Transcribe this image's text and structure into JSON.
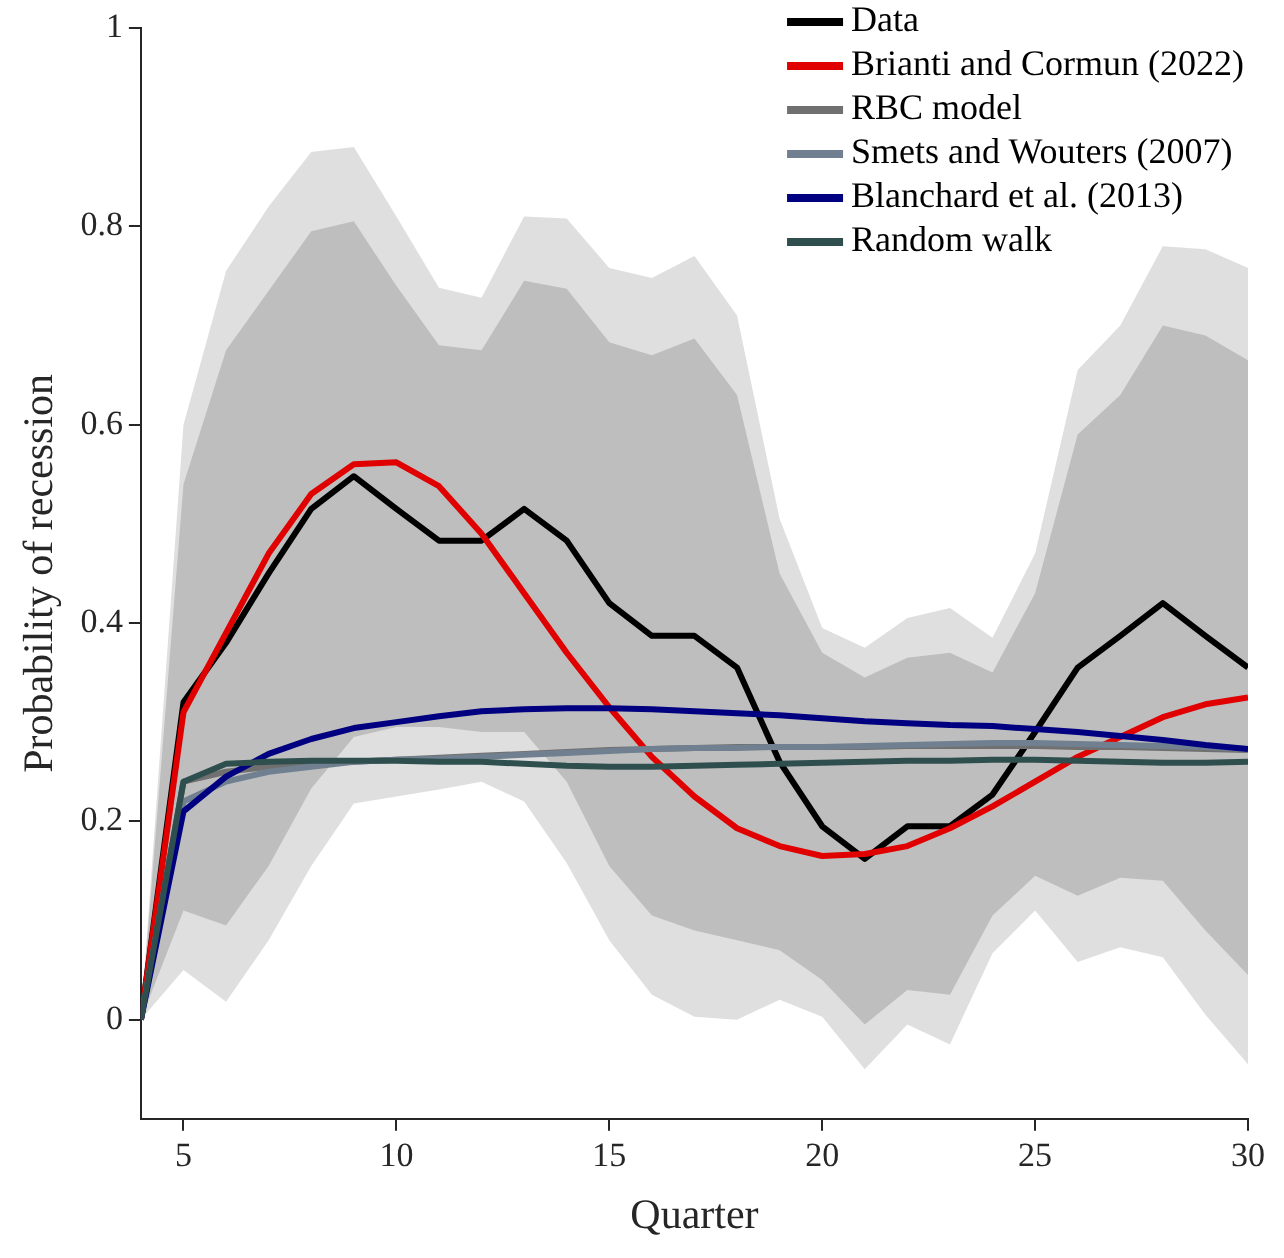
{
  "chart_data": {
    "type": "line",
    "xlabel": "Quarter",
    "ylabel": "Probability of recession",
    "x": [
      4,
      5,
      6,
      7,
      8,
      9,
      10,
      11,
      12,
      13,
      14,
      15,
      16,
      17,
      18,
      19,
      20,
      21,
      22,
      23,
      24,
      25,
      26,
      27,
      28,
      29,
      30
    ],
    "xlim": [
      4,
      30
    ],
    "xticks": [
      5,
      10,
      15,
      20,
      25,
      30
    ],
    "ylim": [
      -0.1,
      1
    ],
    "yticks": [
      0,
      0.2,
      0.4,
      0.6,
      0.8,
      1
    ],
    "grid": false,
    "legend": "top right",
    "marker": "none",
    "line_style": "solid",
    "series": [
      {
        "type": "area",
        "color": "#dfdfdf",
        "values": [
          null,
          null,
          null,
          null,
          null,
          null,
          null,
          null,
          null,
          null,
          null,
          null,
          null,
          null,
          null,
          null,
          null,
          null,
          null,
          null,
          null,
          null,
          null,
          null,
          null,
          null,
          null
        ],
        "lower": [
          0,
          0.05,
          0.018,
          0.08,
          0.155,
          0.218,
          0.225,
          0.232,
          0.24,
          0.22,
          0.158,
          0.08,
          0.025,
          0.003,
          0.0,
          0.02,
          0.003,
          -0.05,
          -0.005,
          -0.025,
          0.067,
          0.11,
          0.058,
          0.073,
          0.063,
          0.005,
          -0.045
        ],
        "upper": [
          0,
          0.6,
          0.755,
          0.82,
          0.875,
          0.88,
          0.81,
          0.738,
          0.728,
          0.81,
          0.808,
          0.758,
          0.748,
          0.77,
          0.71,
          0.505,
          0.395,
          0.375,
          0.405,
          0.415,
          0.385,
          0.47,
          0.655,
          0.7,
          0.78,
          0.777,
          0.758
        ]
      },
      {
        "type": "area",
        "color": "#bebebe",
        "values": [
          null,
          null,
          null,
          null,
          null,
          null,
          null,
          null,
          null,
          null,
          null,
          null,
          null,
          null,
          null,
          null,
          null,
          null,
          null,
          null,
          null,
          null,
          null,
          null,
          null,
          null,
          null
        ],
        "lower": [
          0,
          0.11,
          0.095,
          0.155,
          0.233,
          0.285,
          0.295,
          0.295,
          0.29,
          0.29,
          0.24,
          0.155,
          0.105,
          0.09,
          0.08,
          0.07,
          0.04,
          -0.005,
          0.03,
          0.025,
          0.105,
          0.145,
          0.125,
          0.143,
          0.14,
          0.09,
          0.045
        ],
        "upper": [
          0,
          0.54,
          0.675,
          0.735,
          0.795,
          0.805,
          0.74,
          0.68,
          0.675,
          0.745,
          0.737,
          0.683,
          0.67,
          0.687,
          0.63,
          0.45,
          0.37,
          0.345,
          0.365,
          0.37,
          0.35,
          0.43,
          0.59,
          0.63,
          0.7,
          0.69,
          0.665
        ]
      },
      {
        "name": "Data",
        "color": "#000000",
        "values": [
          0,
          0.32,
          0.38,
          0.45,
          0.515,
          0.548,
          0.515,
          0.483,
          0.483,
          0.515,
          0.483,
          0.42,
          0.387,
          0.387,
          0.355,
          0.26,
          0.195,
          0.162,
          0.195,
          0.195,
          0.227,
          0.29,
          0.355,
          0.387,
          0.42,
          0.387,
          0.355
        ]
      },
      {
        "name": "Brianti and Cormun (2022)",
        "color": "#e00000",
        "values": [
          0,
          0.31,
          0.39,
          0.47,
          0.53,
          0.56,
          0.562,
          0.538,
          0.49,
          0.43,
          0.37,
          0.315,
          0.265,
          0.225,
          0.193,
          0.175,
          0.165,
          0.167,
          0.175,
          0.193,
          0.215,
          0.24,
          0.265,
          0.285,
          0.305,
          0.318,
          0.325
        ]
      },
      {
        "name": "RBC model",
        "color": "#707070",
        "values": [
          0,
          0.24,
          0.25,
          0.255,
          0.258,
          0.26,
          0.262,
          0.264,
          0.266,
          0.268,
          0.27,
          0.272,
          0.273,
          0.274,
          0.275,
          0.275,
          0.275,
          0.275,
          0.276,
          0.276,
          0.276,
          0.276,
          0.275,
          0.275,
          0.274,
          0.273,
          0.272
        ]
      },
      {
        "name": "Smets and Wouters (2007)",
        "color": "#708090",
        "values": [
          0,
          0.22,
          0.24,
          0.25,
          0.255,
          0.26,
          0.262,
          0.263,
          0.265,
          0.267,
          0.269,
          0.271,
          0.273,
          0.274,
          0.274,
          0.275,
          0.275,
          0.276,
          0.277,
          0.278,
          0.279,
          0.279,
          0.278,
          0.277,
          0.276,
          0.275,
          0.273
        ]
      },
      {
        "name": "Blanchard et al. (2013)",
        "color": "#000080",
        "values": [
          0,
          0.21,
          0.245,
          0.268,
          0.283,
          0.294,
          0.3,
          0.306,
          0.311,
          0.313,
          0.314,
          0.314,
          0.313,
          0.311,
          0.309,
          0.307,
          0.304,
          0.301,
          0.299,
          0.297,
          0.296,
          0.293,
          0.29,
          0.286,
          0.282,
          0.277,
          0.273
        ]
      },
      {
        "name": "Random walk",
        "color": "#2f4f4f",
        "values": [
          0,
          0.24,
          0.258,
          0.26,
          0.261,
          0.261,
          0.261,
          0.26,
          0.26,
          0.258,
          0.256,
          0.255,
          0.255,
          0.256,
          0.257,
          0.258,
          0.259,
          0.26,
          0.261,
          0.261,
          0.262,
          0.262,
          0.261,
          0.26,
          0.259,
          0.259,
          0.26
        ]
      }
    ]
  }
}
